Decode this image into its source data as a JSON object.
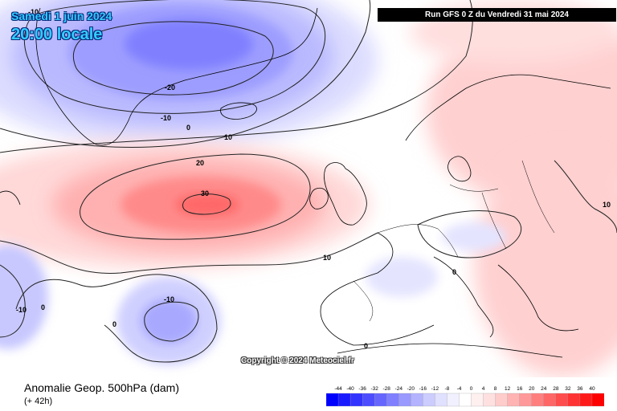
{
  "header": {
    "date": "Samedi 1 juin 2024",
    "time": "20:00 locale",
    "run": "Run GFS 0 Z du Vendredi 31 mai 2024"
  },
  "map": {
    "copyright": "Copyright © 2024 Meteociel.fr",
    "contour_labels": [
      "-10",
      "-20",
      "-10",
      "0",
      "10",
      "20",
      "30",
      "10",
      "0",
      "10",
      "0",
      "-10",
      "-10",
      "0",
      "0"
    ]
  },
  "footer": {
    "title": "Anomalie Geop. 500hPa (dam)",
    "subtitle": "(+ 42h)"
  },
  "legend": {
    "values": [
      "-44",
      "-40",
      "-36",
      "-32",
      "-28",
      "-24",
      "-20",
      "-16",
      "-12",
      "-8",
      "-4",
      "0",
      "4",
      "8",
      "12",
      "16",
      "20",
      "24",
      "28",
      "32",
      "36",
      "40"
    ],
    "colors": [
      "#0000ff",
      "#1a1aff",
      "#3333ff",
      "#4d4dff",
      "#6666ff",
      "#7f7fff",
      "#9999ff",
      "#b3b3ff",
      "#ccccff",
      "#e0e0ff",
      "#f0f0ff",
      "#ffffff",
      "#fff0f0",
      "#ffe0e0",
      "#ffcccc",
      "#ffb3b3",
      "#ff9999",
      "#ff7f7f",
      "#ff6666",
      "#ff4d4d",
      "#ff3333",
      "#ff1a1a",
      "#ff0000"
    ]
  }
}
